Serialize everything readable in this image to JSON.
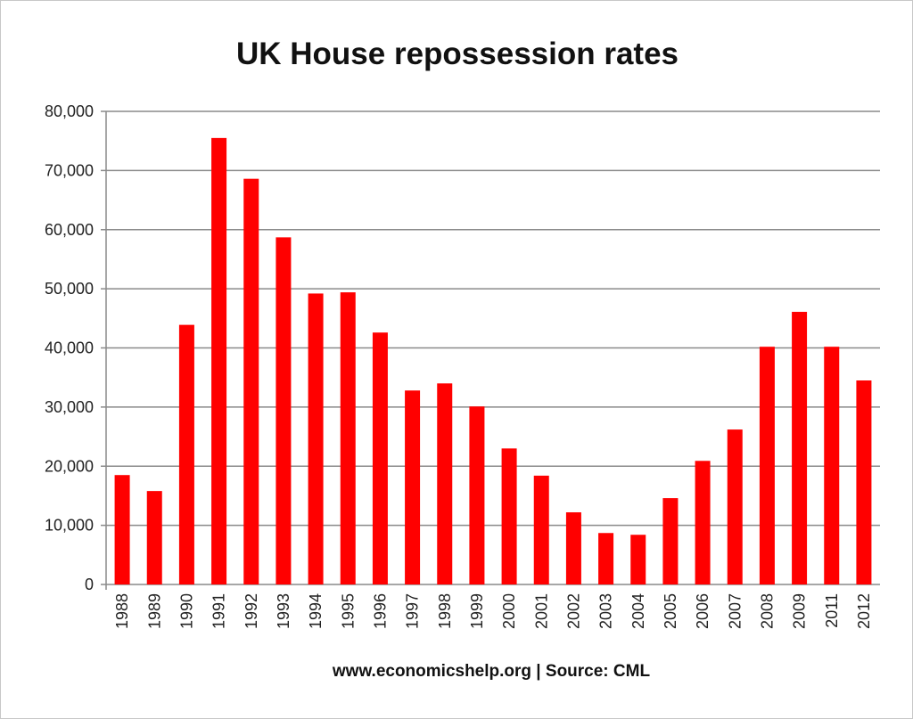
{
  "chart_data": {
    "type": "bar",
    "title": "UK House repossession rates",
    "footer": "www.economicshelp.org | Source: CML",
    "xlabel": "",
    "ylabel": "",
    "ylim": [
      0,
      80000
    ],
    "yticks": [
      0,
      10000,
      20000,
      30000,
      40000,
      50000,
      60000,
      70000,
      80000
    ],
    "ytick_labels": [
      "0",
      "10,000",
      "20,000",
      "30,000",
      "40,000",
      "50,000",
      "60,000",
      "70,000",
      "80,000"
    ],
    "grid": true,
    "bar_color": "#ff0000",
    "categories": [
      "1988",
      "1989",
      "1990",
      "1991",
      "1992",
      "1993",
      "1994",
      "1995",
      "1996",
      "1997",
      "1998",
      "1999",
      "2000",
      "2001",
      "2002",
      "2003",
      "2004",
      "2005",
      "2006",
      "2007",
      "2008",
      "2009",
      "2011",
      "2012"
    ],
    "values": [
      18500,
      15800,
      43900,
      75500,
      68600,
      58700,
      49200,
      49400,
      42600,
      32800,
      34000,
      30100,
      23000,
      18400,
      12200,
      8700,
      8400,
      14600,
      20900,
      26200,
      40200,
      46100,
      40200,
      34500
    ]
  }
}
